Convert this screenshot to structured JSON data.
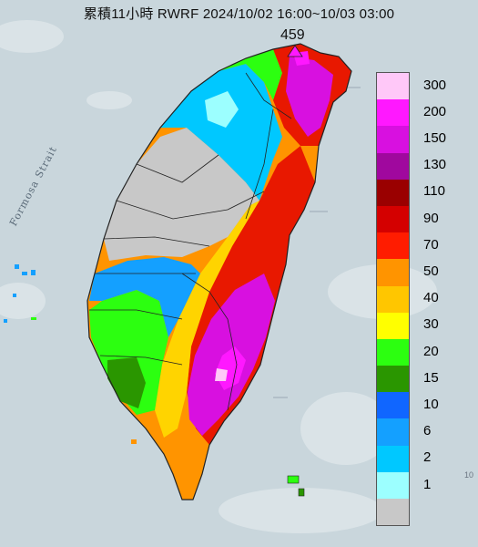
{
  "map": {
    "title": "累積11小時 RWRF 2024/10/02 16:00~10/03 03:00",
    "max_value": "459",
    "strait_label": "Formosa Strait",
    "corner_number": "10"
  },
  "legend": [
    {
      "label": "300",
      "color": "#ffc8f8"
    },
    {
      "label": "200",
      "color": "#ff18ff"
    },
    {
      "label": "150",
      "color": "#d810e0"
    },
    {
      "label": "130",
      "color": "#a0089e"
    },
    {
      "label": "110",
      "color": "#9a0000"
    },
    {
      "label": "90",
      "color": "#d40000"
    },
    {
      "label": "70",
      "color": "#ff1c00"
    },
    {
      "label": "50",
      "color": "#ff9400"
    },
    {
      "label": "40",
      "color": "#ffc600"
    },
    {
      "label": "30",
      "color": "#ffff00"
    },
    {
      "label": "20",
      "color": "#2cff10"
    },
    {
      "label": "15",
      "color": "#2a9600"
    },
    {
      "label": "10",
      "color": "#1066ff"
    },
    {
      "label": "6",
      "color": "#14a0ff"
    },
    {
      "label": "2",
      "color": "#00c8ff"
    },
    {
      "label": "1",
      "color": "#9cffff"
    },
    {
      "label": "",
      "color": "#c8c8c8"
    }
  ],
  "colors": {
    "sea": "#c9d6dc",
    "land_gray": "#c8c8c8",
    "boundary": "#222222"
  }
}
